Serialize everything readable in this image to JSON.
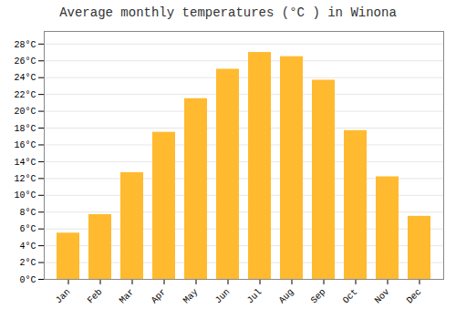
{
  "chart_data": {
    "type": "bar",
    "title": "Average monthly temperatures (°C ) in Winona",
    "categories": [
      "Jan",
      "Feb",
      "Mar",
      "Apr",
      "May",
      "Jun",
      "Jul",
      "Aug",
      "Sep",
      "Oct",
      "Nov",
      "Dec"
    ],
    "values": [
      5.5,
      7.7,
      12.7,
      17.5,
      21.5,
      25.0,
      27.0,
      26.5,
      23.7,
      17.7,
      12.2,
      7.5
    ],
    "color": "#FFBA30",
    "ylim": [
      0,
      29.5
    ],
    "yticks": [
      {
        "value": 0,
        "label": "0°C"
      },
      {
        "value": 2,
        "label": "2°C"
      },
      {
        "value": 4,
        "label": "4°C"
      },
      {
        "value": 6,
        "label": "6°C"
      },
      {
        "value": 8,
        "label": "8°C"
      },
      {
        "value": 10,
        "label": "10°C"
      },
      {
        "value": 12,
        "label": "12°C"
      },
      {
        "value": 14,
        "label": "14°C"
      },
      {
        "value": 16,
        "label": "16°C"
      },
      {
        "value": 18,
        "label": "18°C"
      },
      {
        "value": 20,
        "label": "20°C"
      },
      {
        "value": 22,
        "label": "22°C"
      },
      {
        "value": 24,
        "label": "24°C"
      },
      {
        "value": 26,
        "label": "26°C"
      },
      {
        "value": 28,
        "label": "28°C"
      }
    ],
    "grid": true
  }
}
